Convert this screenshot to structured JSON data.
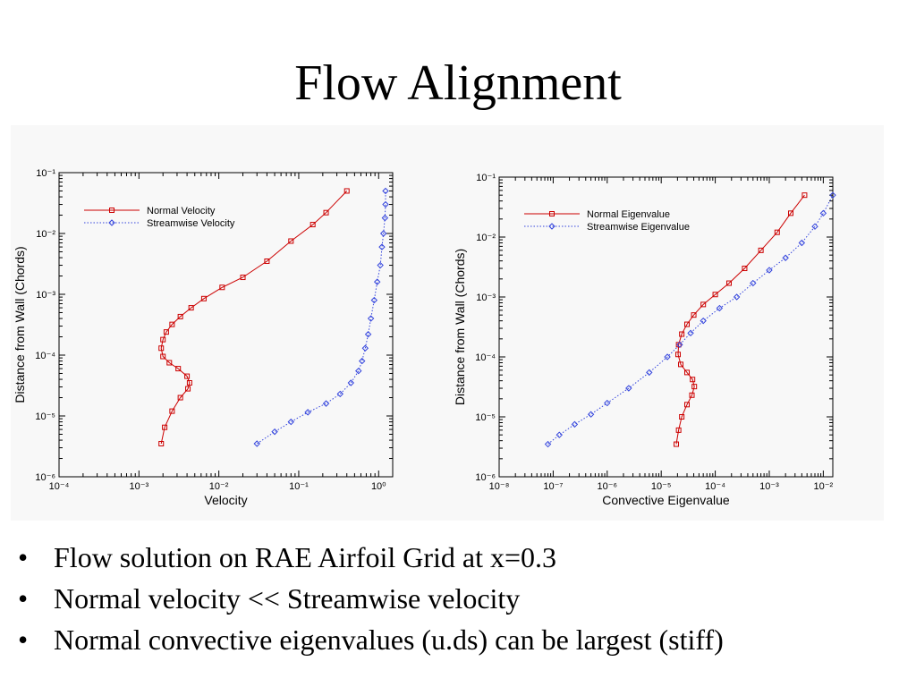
{
  "slide": {
    "title": "Flow Alignment",
    "bullet_symbol": "•",
    "bullets": [
      "Flow solution on RAE Airfoil Grid at x=0.3",
      "Normal velocity << Streamwise velocity",
      "Normal convective eigenvalues (u.ds) can be largest (stiff)"
    ]
  },
  "colors": {
    "normal": "#cc0000",
    "streamwise": "#3344dd",
    "axis": "#000000"
  },
  "chart_data": [
    {
      "type": "line",
      "xscale": "log",
      "yscale": "log",
      "xlabel": "Velocity",
      "ylabel": "Distance from Wall (Chords)",
      "xlim": [
        0.0001,
        1.5
      ],
      "ylim": [
        1e-06,
        0.1
      ],
      "xtick_exponents": [
        -4,
        -3,
        -2,
        -1,
        0
      ],
      "ytick_exponents": [
        -6,
        -5,
        -4,
        -3,
        -2,
        -1
      ],
      "legend": "top-left",
      "grid": false,
      "series": [
        {
          "name": "Normal Velocity",
          "marker": "square",
          "line": "solid",
          "x": [
            0.0019,
            0.0021,
            0.0026,
            0.0033,
            0.0041,
            0.0043,
            0.004,
            0.0031,
            0.0024,
            0.002,
            0.0019,
            0.002,
            0.0022,
            0.0026,
            0.0033,
            0.0045,
            0.0065,
            0.011,
            0.02,
            0.04,
            0.08,
            0.15,
            0.22,
            0.4
          ],
          "y": [
            3.5e-06,
            6.5e-06,
            1.2e-05,
            2e-05,
            2.8e-05,
            3.5e-05,
            4.5e-05,
            6e-05,
            7.5e-05,
            9.5e-05,
            0.00013,
            0.00018,
            0.00024,
            0.00032,
            0.00043,
            0.0006,
            0.00085,
            0.0013,
            0.0019,
            0.0035,
            0.0075,
            0.014,
            0.022,
            0.05
          ]
        },
        {
          "name": "Streamwise Velocity",
          "marker": "diamond",
          "line": "dotted",
          "x": [
            0.03,
            0.05,
            0.08,
            0.13,
            0.22,
            0.33,
            0.45,
            0.56,
            0.62,
            0.68,
            0.74,
            0.8,
            0.88,
            0.96,
            1.05,
            1.1,
            1.15,
            1.2,
            1.22,
            1.22
          ],
          "y": [
            3.5e-06,
            5.5e-06,
            8e-06,
            1.15e-05,
            1.6e-05,
            2.3e-05,
            3.5e-05,
            5.5e-05,
            8e-05,
            0.00013,
            0.00022,
            0.0004,
            0.0008,
            0.0016,
            0.003,
            0.006,
            0.01,
            0.018,
            0.03,
            0.05
          ]
        }
      ]
    },
    {
      "type": "line",
      "xscale": "log",
      "yscale": "log",
      "xlabel": "Convective Eigenvalue",
      "ylabel": "Distance from Wall (Chords)",
      "xlim": [
        1e-08,
        0.015
      ],
      "ylim": [
        1e-06,
        0.1
      ],
      "xtick_exponents": [
        -8,
        -7,
        -6,
        -5,
        -4,
        -3,
        -2
      ],
      "ytick_exponents": [
        -6,
        -5,
        -4,
        -3,
        -2,
        -1
      ],
      "legend": "top-left",
      "grid": false,
      "series": [
        {
          "name": "Normal Eigenvalue",
          "marker": "square",
          "line": "solid",
          "x": [
            1.9e-05,
            2.1e-05,
            2.4e-05,
            3e-05,
            3.7e-05,
            4.1e-05,
            3.8e-05,
            3e-05,
            2.3e-05,
            2.05e-05,
            2.1e-05,
            2.4e-05,
            3e-05,
            4e-05,
            6e-05,
            0.0001,
            0.00018,
            0.00035,
            0.0007,
            0.0014,
            0.0025,
            0.0045
          ],
          "y": [
            3.5e-06,
            6e-06,
            1e-05,
            1.6e-05,
            2.3e-05,
            3.2e-05,
            4.2e-05,
            5.5e-05,
            7.5e-05,
            0.00011,
            0.00016,
            0.00024,
            0.00035,
            0.0005,
            0.00075,
            0.0011,
            0.0017,
            0.003,
            0.006,
            0.012,
            0.025,
            0.05
          ]
        },
        {
          "name": "Streamwise Eigenvalue",
          "marker": "diamond",
          "line": "dotted",
          "x": [
            8e-08,
            1.3e-07,
            2.5e-07,
            5e-07,
            1e-06,
            2.5e-06,
            6e-06,
            1.3e-05,
            2.2e-05,
            3.5e-05,
            6e-05,
            0.00012,
            0.00025,
            0.0005,
            0.001,
            0.002,
            0.004,
            0.007,
            0.01,
            0.015
          ],
          "y": [
            3.5e-06,
            5e-06,
            7.5e-06,
            1.1e-05,
            1.7e-05,
            3e-05,
            5.5e-05,
            0.0001,
            0.00016,
            0.00025,
            0.0004,
            0.00065,
            0.001,
            0.0017,
            0.0028,
            0.0045,
            0.008,
            0.015,
            0.025,
            0.05
          ]
        }
      ]
    }
  ]
}
